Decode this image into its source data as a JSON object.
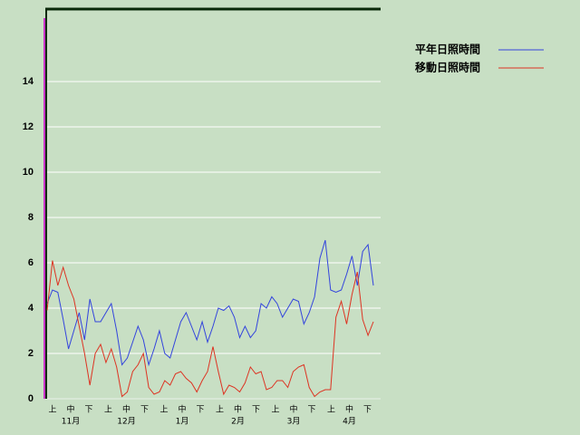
{
  "chart_data": {
    "type": "line",
    "ylim": [
      0,
      17.2
    ],
    "yticks": [
      0,
      2,
      4,
      6,
      8,
      10,
      12,
      14
    ],
    "grid": true,
    "dekad_labels": [
      "上",
      "中",
      "下",
      "上",
      "中",
      "下",
      "上",
      "中",
      "下",
      "上",
      "中",
      "下",
      "上",
      "中",
      "下",
      "上",
      "中",
      "下"
    ],
    "month_labels": [
      "11月",
      "12月",
      "1月",
      "2月",
      "3月",
      "4月"
    ],
    "legend": "top-right",
    "series": [
      {
        "name": "平年日照時間",
        "color": "#3344dd",
        "values": [
          4.2,
          4.8,
          4.7,
          3.5,
          2.2,
          3.0,
          3.8,
          2.6,
          4.4,
          3.4,
          3.4,
          3.8,
          4.2,
          3.0,
          1.5,
          1.8,
          2.5,
          3.2,
          2.6,
          1.5,
          2.2,
          3.0,
          2.0,
          1.8,
          2.6,
          3.4,
          3.8,
          3.2,
          2.6,
          3.4,
          2.5,
          3.2,
          4.0,
          3.9,
          4.1,
          3.6,
          2.7,
          3.2,
          2.7,
          3.0,
          4.2,
          4.0,
          4.5,
          4.2,
          3.6,
          4.0,
          4.4,
          4.3,
          3.3,
          3.8,
          4.5,
          6.2,
          7.0,
          4.8,
          4.7,
          4.8,
          5.5,
          6.3,
          5.0,
          6.5,
          6.8,
          5.0
        ]
      },
      {
        "name": "移動日照時間",
        "color": "#dd3322",
        "values": [
          3.9,
          6.1,
          5.0,
          5.8,
          5.0,
          4.4,
          3.2,
          2.0,
          0.6,
          2.0,
          2.4,
          1.6,
          2.2,
          1.4,
          0.1,
          0.3,
          1.2,
          1.5,
          2.0,
          0.5,
          0.2,
          0.3,
          0.8,
          0.6,
          1.1,
          1.2,
          0.9,
          0.7,
          0.3,
          0.8,
          1.2,
          2.3,
          1.2,
          0.2,
          0.6,
          0.5,
          0.3,
          0.7,
          1.4,
          1.1,
          1.2,
          0.4,
          0.5,
          0.8,
          0.8,
          0.5,
          1.2,
          1.4,
          1.5,
          0.5,
          0.1,
          0.3,
          0.4,
          0.4,
          3.6,
          4.3,
          3.3,
          4.6,
          5.6,
          3.5,
          2.8,
          3.4
        ]
      }
    ]
  }
}
